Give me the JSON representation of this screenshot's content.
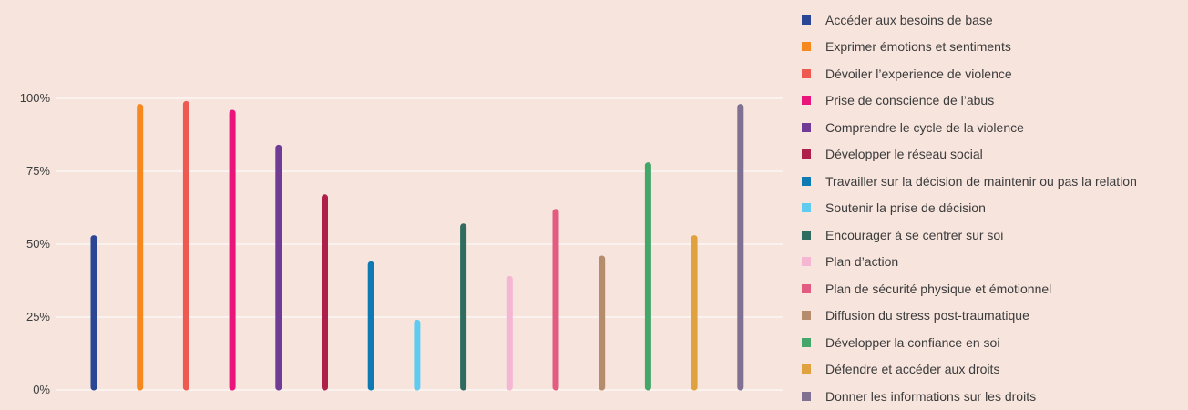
{
  "chart_data": {
    "type": "bar",
    "ylim": [
      0,
      100
    ],
    "yticks": [
      "0%",
      "25%",
      "50%",
      "75%",
      "100%"
    ],
    "grid": true,
    "legend_position": "right",
    "series": [
      {
        "name": "Accéder aux besoins de base",
        "value": 52,
        "color": "#2a4694"
      },
      {
        "name": "Exprimer émotions et sentiments",
        "value": 97,
        "color": "#f5891f"
      },
      {
        "name": "Dévoiler l’experience de violence",
        "value": 98,
        "color": "#ef5a50"
      },
      {
        "name": "Prise de conscience de l’abus",
        "value": 95,
        "color": "#e9157a"
      },
      {
        "name": "Comprendre le cycle de la violence",
        "value": 83,
        "color": "#6f3b96"
      },
      {
        "name": "Développer le réseau social",
        "value": 66,
        "color": "#ae1f4a"
      },
      {
        "name": "Travailler sur la décision de maintenir ou pas la relation",
        "value": 43,
        "color": "#0d7ab3"
      },
      {
        "name": "Soutenir la prise de  décision",
        "value": 23,
        "color": "#5fcbf0"
      },
      {
        "name": "Encourager à se centrer sur soi",
        "value": 56,
        "color": "#2f6b60"
      },
      {
        "name": "Plan d’action",
        "value": 38,
        "color": "#f4b6d3"
      },
      {
        "name": "Plan de sécurité physique et émotionnel",
        "value": 61,
        "color": "#e25c82"
      },
      {
        "name": "Diffusion du stress post-traumatique",
        "value": 45,
        "color": "#b68d6c"
      },
      {
        "name": "Développer la confiance en soi",
        "value": 77,
        "color": "#45a66a"
      },
      {
        "name": "Défendre et accéder aux droits",
        "value": 52,
        "color": "#dfa23e"
      },
      {
        "name": "Donner les informations sur les droits",
        "value": 97,
        "color": "#807092"
      }
    ]
  }
}
